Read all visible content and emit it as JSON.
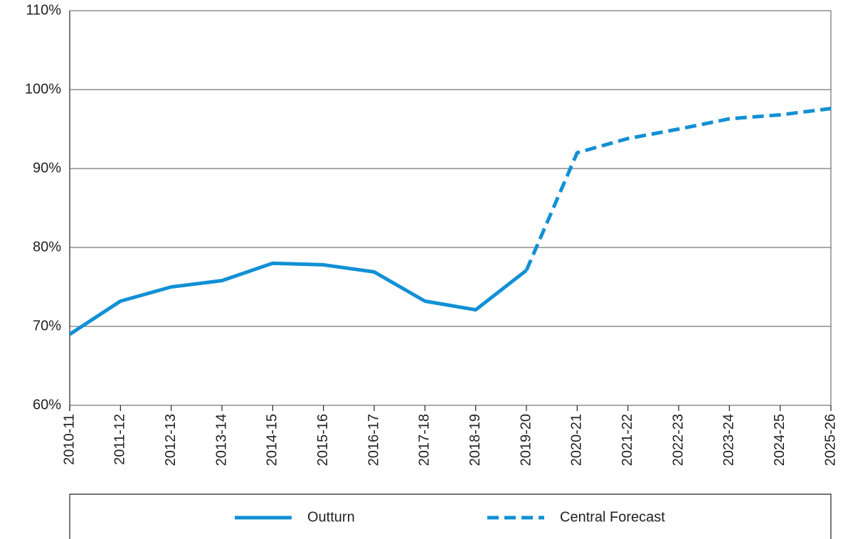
{
  "chart_data": {
    "type": "line",
    "categories": [
      "2010-11",
      "2011-12",
      "2012-13",
      "2013-14",
      "2014-15",
      "2015-16",
      "2016-17",
      "2017-18",
      "2018-19",
      "2019-20",
      "2020-21",
      "2021-22",
      "2022-23",
      "2023-24",
      "2024-25",
      "2025-26"
    ],
    "series": [
      {
        "name": "Outturn",
        "color": "#1190d5",
        "dash": false,
        "values": [
          69.0,
          73.2,
          75.0,
          75.8,
          78.0,
          77.8,
          76.9,
          73.2,
          72.1,
          77.1,
          null,
          null,
          null,
          null,
          null,
          null
        ]
      },
      {
        "name": "Central Forecast",
        "color": "#1190d5",
        "dash": true,
        "values": [
          null,
          null,
          null,
          null,
          null,
          null,
          null,
          null,
          null,
          77.1,
          92.0,
          93.8,
          95.0,
          96.3,
          96.8,
          97.6
        ]
      }
    ],
    "ylim": [
      60,
      110
    ],
    "yticks": [
      {
        "value": 60,
        "label": "60%"
      },
      {
        "value": 70,
        "label": "70%"
      },
      {
        "value": 80,
        "label": "80%"
      },
      {
        "value": 90,
        "label": "90%"
      },
      {
        "value": 100,
        "label": "100%"
      },
      {
        "value": 110,
        "label": "110%"
      }
    ],
    "grid": true,
    "legend": "bottom"
  }
}
